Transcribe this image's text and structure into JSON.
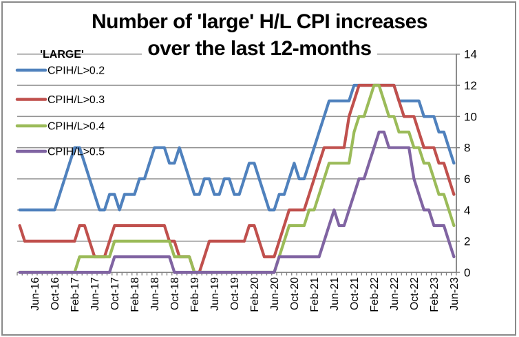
{
  "title": {
    "line1": "Number of 'large' H/L CPI increases",
    "line2": "over the last 12-months"
  },
  "legend": {
    "title": "'LARGE'"
  },
  "colors": {
    "series_blue": "#4F81BD",
    "series_red": "#C0504D",
    "series_green": "#9BBB59",
    "series_purple": "#8064A2",
    "gridline": "#949494",
    "axis": "#7F7F7F",
    "text": "#000000",
    "background": "#FFFFFF",
    "frame_border": "#898989"
  },
  "chart_data": {
    "type": "line",
    "title": "Number of 'large' H/L CPI increases over the last 12-months",
    "legend_title": "'LARGE'",
    "legend_position": "top-left-overlay",
    "grid": true,
    "y_axis": {
      "side": "right",
      "min": 0,
      "max": 14,
      "tick_step": 2,
      "tick_labels": [
        "0",
        "2",
        "4",
        "6",
        "8",
        "10",
        "12",
        "14"
      ]
    },
    "x_axis": {
      "label_every_n_months": 4,
      "first_label_index": 3,
      "visible_tick_labels": [
        "Jun-16",
        "Oct-16",
        "Feb-17",
        "Jun-17",
        "Oct-17",
        "Feb-18",
        "Jun-18",
        "Oct-18",
        "Feb-19",
        "Jun-19",
        "Oct-19",
        "Feb-20",
        "Jun-20",
        "Oct-20",
        "Feb-21",
        "Jun-21",
        "Oct-21",
        "Feb-22",
        "Jun-22",
        "Oct-22",
        "Feb-23",
        "Jun-23"
      ]
    },
    "months": [
      "Mar-16",
      "Apr-16",
      "May-16",
      "Jun-16",
      "Jul-16",
      "Aug-16",
      "Sep-16",
      "Oct-16",
      "Nov-16",
      "Dec-16",
      "Jan-17",
      "Feb-17",
      "Mar-17",
      "Apr-17",
      "May-17",
      "Jun-17",
      "Jul-17",
      "Aug-17",
      "Sep-17",
      "Oct-17",
      "Nov-17",
      "Dec-17",
      "Jan-18",
      "Feb-18",
      "Mar-18",
      "Apr-18",
      "May-18",
      "Jun-18",
      "Jul-18",
      "Aug-18",
      "Sep-18",
      "Oct-18",
      "Nov-18",
      "Dec-18",
      "Jan-19",
      "Feb-19",
      "Mar-19",
      "Apr-19",
      "May-19",
      "Jun-19",
      "Jul-19",
      "Aug-19",
      "Sep-19",
      "Oct-19",
      "Nov-19",
      "Dec-19",
      "Jan-20",
      "Feb-20",
      "Mar-20",
      "Apr-20",
      "May-20",
      "Jun-20",
      "Jul-20",
      "Aug-20",
      "Sep-20",
      "Oct-20",
      "Nov-20",
      "Dec-20",
      "Jan-21",
      "Feb-21",
      "Mar-21",
      "Apr-21",
      "May-21",
      "Jun-21",
      "Jul-21",
      "Aug-21",
      "Sep-21",
      "Oct-21",
      "Nov-21",
      "Dec-21",
      "Jan-22",
      "Feb-22",
      "Mar-22",
      "Apr-22",
      "May-22",
      "Jun-22",
      "Jul-22",
      "Aug-22",
      "Sep-22",
      "Oct-22",
      "Nov-22",
      "Dec-22",
      "Jan-23",
      "Feb-23",
      "Mar-23",
      "Apr-23",
      "May-23",
      "Jun-23"
    ],
    "series": [
      {
        "name": "CPIH/L>0.2",
        "color": "#4F81BD",
        "values": [
          4,
          4,
          4,
          4,
          4,
          4,
          4,
          4,
          5,
          6,
          7,
          8,
          8,
          7,
          6,
          5,
          4,
          4,
          5,
          5,
          4,
          5,
          5,
          5,
          6,
          6,
          7,
          8,
          8,
          8,
          7,
          7,
          8,
          7,
          6,
          5,
          5,
          6,
          6,
          5,
          5,
          6,
          6,
          5,
          5,
          6,
          7,
          7,
          6,
          5,
          4,
          4,
          5,
          5,
          6,
          7,
          6,
          6,
          7,
          8,
          9,
          10,
          11,
          11,
          11,
          11,
          11,
          12,
          12,
          12,
          12,
          12,
          12,
          12,
          12,
          12,
          11,
          11,
          11,
          11,
          11,
          10,
          10,
          10,
          9,
          9,
          8,
          7
        ]
      },
      {
        "name": "CPIH/L>0.3",
        "color": "#C0504D",
        "values": [
          3,
          2,
          2,
          2,
          2,
          2,
          2,
          2,
          2,
          2,
          2,
          2,
          3,
          3,
          2,
          1,
          1,
          1,
          2,
          3,
          3,
          3,
          3,
          3,
          3,
          3,
          3,
          3,
          3,
          3,
          2,
          2,
          1,
          1,
          1,
          0,
          0,
          1,
          2,
          2,
          2,
          2,
          2,
          2,
          2,
          2,
          3,
          3,
          2,
          1,
          1,
          1,
          2,
          3,
          4,
          4,
          4,
          4,
          5,
          6,
          7,
          8,
          8,
          8,
          8,
          8,
          10,
          11,
          12,
          12,
          12,
          12,
          12,
          12,
          12,
          12,
          11,
          10,
          10,
          10,
          9,
          8,
          8,
          8,
          7,
          7,
          6,
          5
        ]
      },
      {
        "name": "CPIH/L>0.4",
        "color": "#9BBB59",
        "values": [
          0,
          0,
          0,
          0,
          0,
          0,
          0,
          0,
          0,
          0,
          0,
          0,
          1,
          1,
          1,
          1,
          1,
          1,
          1,
          2,
          2,
          2,
          2,
          2,
          2,
          2,
          2,
          2,
          2,
          2,
          2,
          1,
          1,
          1,
          1,
          0,
          0,
          0,
          0,
          0,
          0,
          0,
          0,
          0,
          0,
          0,
          0,
          0,
          0,
          0,
          0,
          0,
          1,
          2,
          3,
          3,
          3,
          3,
          4,
          4,
          5,
          6,
          7,
          7,
          7,
          7,
          7,
          9,
          10,
          10,
          11,
          12,
          12,
          11,
          10,
          10,
          9,
          9,
          9,
          8,
          8,
          7,
          7,
          6,
          5,
          5,
          4,
          3
        ]
      },
      {
        "name": "CPIH/L>0.5",
        "color": "#8064A2",
        "values": [
          0,
          0,
          0,
          0,
          0,
          0,
          0,
          0,
          0,
          0,
          0,
          0,
          0,
          0,
          0,
          0,
          0,
          0,
          0,
          1,
          1,
          1,
          1,
          1,
          1,
          1,
          1,
          1,
          1,
          1,
          1,
          0,
          0,
          0,
          0,
          0,
          0,
          0,
          0,
          0,
          0,
          0,
          0,
          0,
          0,
          0,
          0,
          0,
          0,
          0,
          0,
          0,
          1,
          1,
          1,
          1,
          1,
          1,
          1,
          1,
          1,
          2,
          3,
          4,
          3,
          3,
          4,
          5,
          6,
          6,
          7,
          8,
          9,
          9,
          8,
          8,
          8,
          8,
          8,
          6,
          5,
          4,
          4,
          3,
          3,
          3,
          2,
          1
        ]
      }
    ]
  }
}
